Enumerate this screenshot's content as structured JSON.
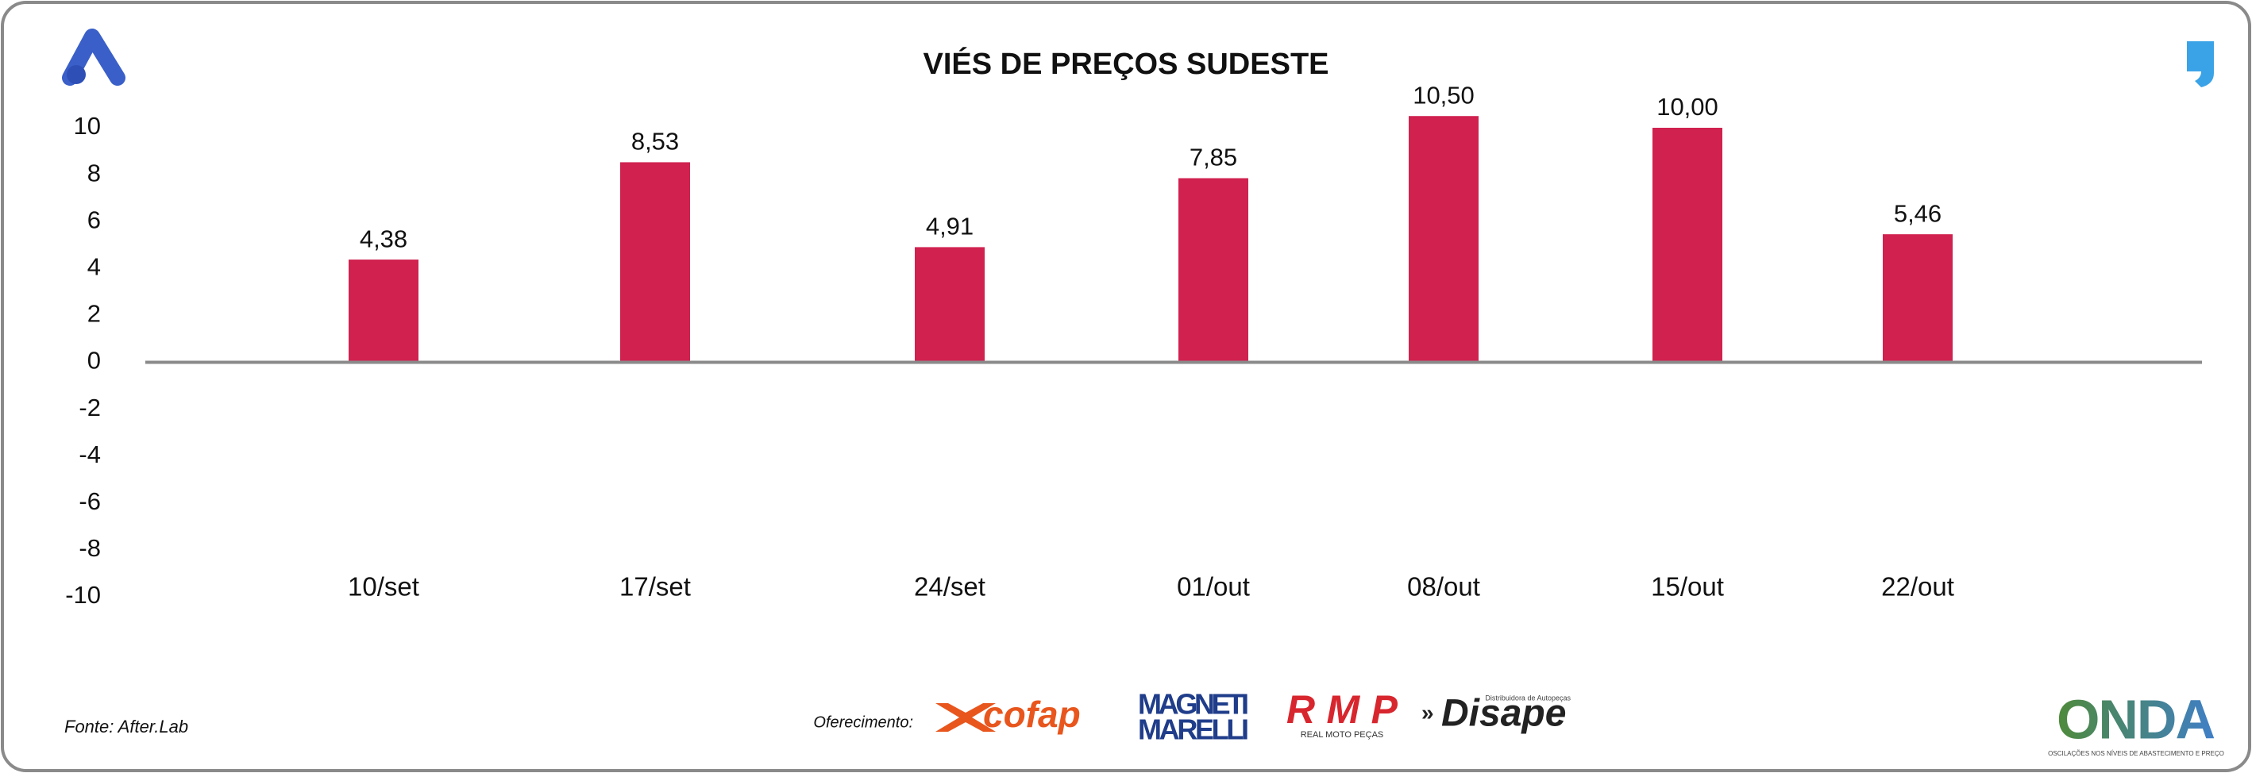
{
  "chart_data": {
    "type": "bar",
    "title": "VIÉS DE PREÇOS SUDESTE",
    "categories": [
      "10/set",
      "17/set",
      "24/set",
      "01/out",
      "08/out",
      "15/out",
      "22/out"
    ],
    "values": [
      4.38,
      8.53,
      4.91,
      7.85,
      10.5,
      10,
      5.46
    ],
    "value_labels": [
      "4,38",
      "8,53",
      "4,91",
      "7,85",
      "10,50",
      "10,00",
      "5,46"
    ],
    "color": "#d0214f",
    "ylim": [
      -10,
      10
    ],
    "yticks": [
      -10,
      -8,
      -6,
      -4,
      -2,
      0,
      2,
      4,
      6,
      8,
      10
    ],
    "grid": false
  },
  "footer": {
    "source": "Fonte: After.Lab",
    "sponsor_label": "Oferecimento:",
    "sponsors": [
      "cofap",
      "MAGNETI",
      "MARELLI",
      "RMP",
      "REAL MOTO PEÇAS",
      "Disape",
      "Distribuidora de Autopeças"
    ],
    "brand": "ONDA",
    "brand_tagline": "OSCILAÇÕES NOS NÍVEIS DE ABASTECIMENTO E PREÇO"
  }
}
